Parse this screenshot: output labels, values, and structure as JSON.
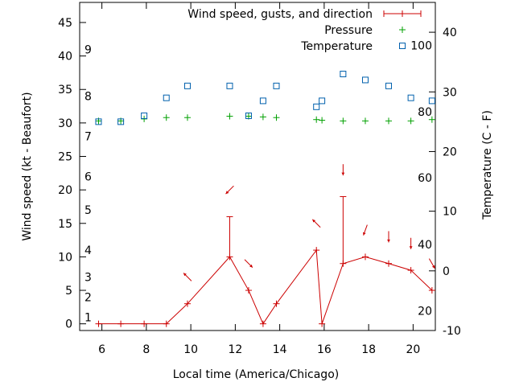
{
  "chart_data": {
    "type": "line",
    "xlabel": "Local time (America/Chicago)",
    "ylabel_left": "Wind speed (kt - Beaufort)",
    "ylabel_right": "Temperature (C - F)",
    "x_ticks": [
      "6",
      "8",
      "10",
      "12",
      "14",
      "16",
      "18",
      "20"
    ],
    "x_range": [
      5,
      21
    ],
    "y_left_ticks": [
      "0",
      "5",
      "10",
      "15",
      "20",
      "25",
      "30",
      "35",
      "40",
      "45"
    ],
    "y_left_range": [
      -1,
      48
    ],
    "y_right_ticks": [
      "-10",
      "0",
      "10",
      "20",
      "30",
      "40"
    ],
    "y_right_range": [
      -10,
      45
    ],
    "beaufort_labels": [
      {
        "text": "1",
        "y": 1
      },
      {
        "text": "2",
        "y": 4
      },
      {
        "text": "3",
        "y": 7
      },
      {
        "text": "4",
        "y": 11
      },
      {
        "text": "5",
        "y": 17
      },
      {
        "text": "6",
        "y": 22
      },
      {
        "text": "7",
        "y": 28
      },
      {
        "text": "8",
        "y": 34
      },
      {
        "text": "9",
        "y": 41
      }
    ],
    "fahrenheit_labels": [
      {
        "text": "20",
        "y": -6.7
      },
      {
        "text": "40",
        "y": 4.4
      },
      {
        "text": "60",
        "y": 15.6
      },
      {
        "text": "80",
        "y": 26.7
      },
      {
        "text": "100",
        "y": 37.8
      }
    ],
    "legend_position": "top-right",
    "series": [
      {
        "name": "Wind speed, gusts, and direction",
        "axis": "left",
        "color": "#cc0000",
        "x": [
          5.85,
          6.85,
          7.9,
          8.9,
          9.85,
          11.75,
          12.6,
          13.25,
          13.85,
          15.65,
          15.9,
          16.85,
          17.85,
          18.9,
          19.9,
          20.85
        ],
        "values": [
          0,
          0,
          0,
          0,
          3,
          10,
          5,
          0,
          3,
          11,
          0,
          9,
          10,
          9,
          8,
          5
        ]
      },
      {
        "name": "Pressure",
        "axis": "left",
        "color": "#00a000",
        "x": [
          5.85,
          6.85,
          7.9,
          8.9,
          9.85,
          11.75,
          12.6,
          13.25,
          13.85,
          15.65,
          15.9,
          16.85,
          17.85,
          18.9,
          19.9,
          20.85
        ],
        "values": [
          30.3,
          30.3,
          30.6,
          30.8,
          30.8,
          31.0,
          31.0,
          30.9,
          30.8,
          30.5,
          30.4,
          30.3,
          30.3,
          30.3,
          30.3,
          30.5
        ]
      },
      {
        "name": "Temperature",
        "axis": "right",
        "color": "#0060ad",
        "x": [
          5.85,
          6.85,
          7.9,
          8.9,
          9.85,
          11.75,
          12.6,
          13.25,
          13.85,
          15.65,
          15.9,
          16.85,
          17.85,
          18.9,
          19.9,
          20.85
        ],
        "values": [
          25,
          25,
          26,
          29,
          31,
          31,
          26,
          28.5,
          31,
          27.5,
          28.5,
          33,
          32,
          31,
          29,
          28.5
        ]
      }
    ],
    "gusts": [
      {
        "x": 11.75,
        "low": 10,
        "high": 16
      },
      {
        "x": 16.85,
        "low": 9,
        "high": 19
      }
    ],
    "direction_arrows": [
      {
        "x": 9.85,
        "y": 7,
        "direction_deg": 135
      },
      {
        "x": 11.75,
        "y": 20,
        "direction_deg": 225
      },
      {
        "x": 12.6,
        "y": 9,
        "direction_deg": 315
      },
      {
        "x": 15.65,
        "y": 15,
        "direction_deg": 135
      },
      {
        "x": 16.85,
        "y": 23,
        "direction_deg": 270
      },
      {
        "x": 17.85,
        "y": 14,
        "direction_deg": 250
      },
      {
        "x": 18.9,
        "y": 13,
        "direction_deg": 270
      },
      {
        "x": 19.9,
        "y": 12,
        "direction_deg": 270
      },
      {
        "x": 20.85,
        "y": 9,
        "direction_deg": 300
      }
    ]
  }
}
